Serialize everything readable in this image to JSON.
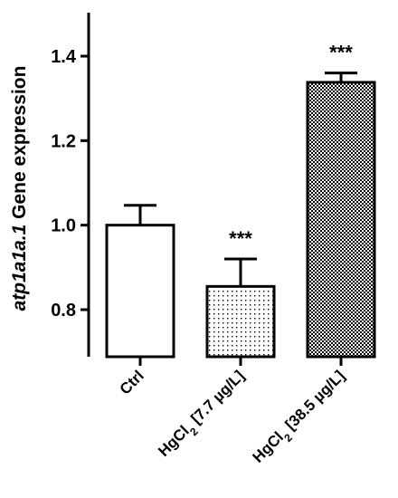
{
  "chart_data": {
    "type": "bar",
    "categories": [
      {
        "parts": [
          {
            "t": "Ctrl"
          }
        ]
      },
      {
        "parts": [
          {
            "t": "HgCl"
          },
          {
            "t": "2",
            "sub": true
          },
          {
            "t": " [7.7 µg/L]"
          }
        ]
      },
      {
        "parts": [
          {
            "t": "HgCl"
          },
          {
            "t": "2",
            "sub": true
          },
          {
            "t": " [38.5 µg/L]"
          }
        ]
      }
    ],
    "values": [
      1.0,
      0.855,
      1.338
    ],
    "error_upper": [
      0.047,
      0.065,
      0.022
    ],
    "significance": [
      "",
      "***",
      "***"
    ],
    "patterns": [
      "none",
      "sparse-dots",
      "dense-checker"
    ],
    "ylabel": {
      "italic": "atp1a1a.1",
      "rest": " Gene expression"
    },
    "ylim": [
      0.7,
      1.5
    ],
    "yticks": [
      0.8,
      1.0,
      1.2,
      1.4
    ],
    "ytick_labels": [
      "0.8",
      "1.0",
      "1.2",
      "1.4"
    ],
    "grid": false,
    "legend": "none",
    "colors": {
      "bar_edge": "#000000",
      "fill": "#ffffff",
      "pattern": "#000000"
    }
  }
}
